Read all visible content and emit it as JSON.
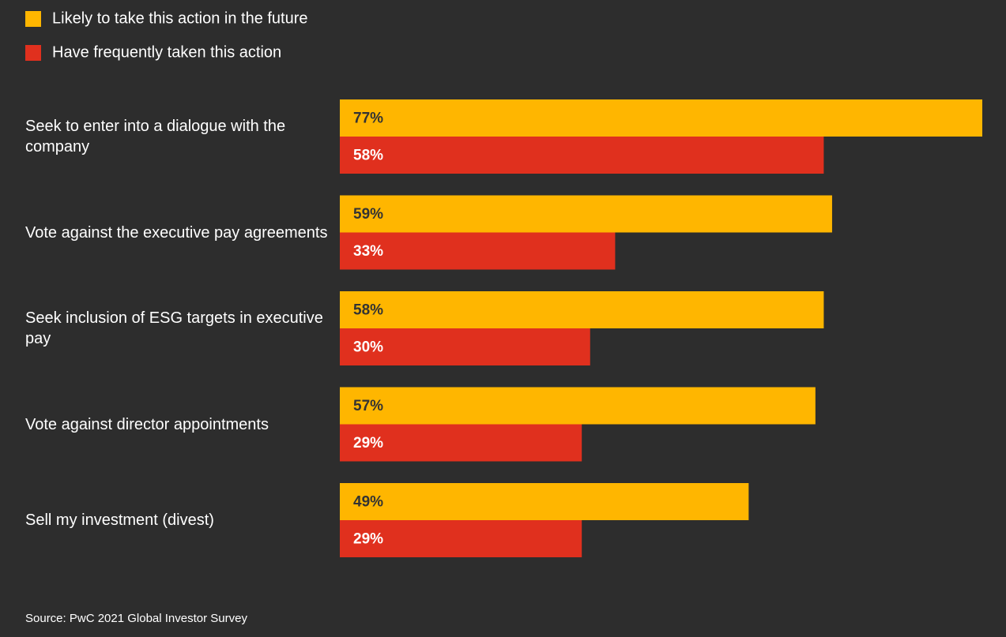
{
  "chart_data": {
    "type": "bar",
    "orientation": "horizontal",
    "categories": [
      "Seek to enter into a dialogue with the company",
      "Vote against the executive pay agreements",
      "Seek inclusion of ESG targets in executive pay",
      "Vote against director appointments",
      "Sell my investment (divest)"
    ],
    "series": [
      {
        "name": "Likely to take this action in the future",
        "color": "#ffb600",
        "values": [
          77,
          59,
          58,
          57,
          49
        ],
        "value_labels": [
          "77%",
          "59%",
          "58%",
          "57%",
          "49%"
        ]
      },
      {
        "name": "Have frequently taken this action",
        "color": "#e0301e",
        "values": [
          58,
          33,
          30,
          29,
          29
        ],
        "value_labels": [
          "58%",
          "33%",
          "30%",
          "29%",
          "29%"
        ]
      }
    ],
    "source": "Source: PwC 2021 Global Investor Survey"
  }
}
